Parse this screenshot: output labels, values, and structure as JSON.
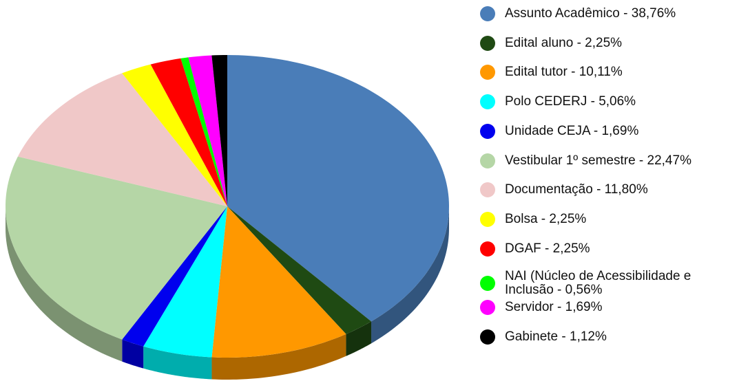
{
  "chart_data": {
    "type": "pie3d",
    "categories": [
      "Assunto Acadêmico - 38,76%",
      "Edital aluno - 2,25%",
      "Edital tutor - 10,11%",
      "Polo CEDERJ - 5,06%",
      "Unidade CEJA - 1,69%",
      "Vestibular 1º semestre - 22,47%",
      "Documentação - 11,80%",
      "Bolsa - 2,25%",
      "DGAF - 2,25%",
      "NAI (Núcleo de Acessibilidade e Inclusão - 0,56%",
      "Servidor - 1,69%",
      "Gabinete - 1,12%"
    ],
    "values": [
      38.76,
      2.25,
      10.11,
      5.06,
      1.69,
      22.47,
      11.8,
      2.25,
      2.25,
      0.56,
      1.69,
      1.12
    ],
    "colors": [
      "#4a7db8",
      "#1f4a13",
      "#ff9800",
      "#00ffff",
      "#0000ee",
      "#b5d6a6",
      "#f0c8c8",
      "#ffff00",
      "#ff0000",
      "#00ff00",
      "#ff00ff",
      "#000000"
    ],
    "legend": "right"
  }
}
